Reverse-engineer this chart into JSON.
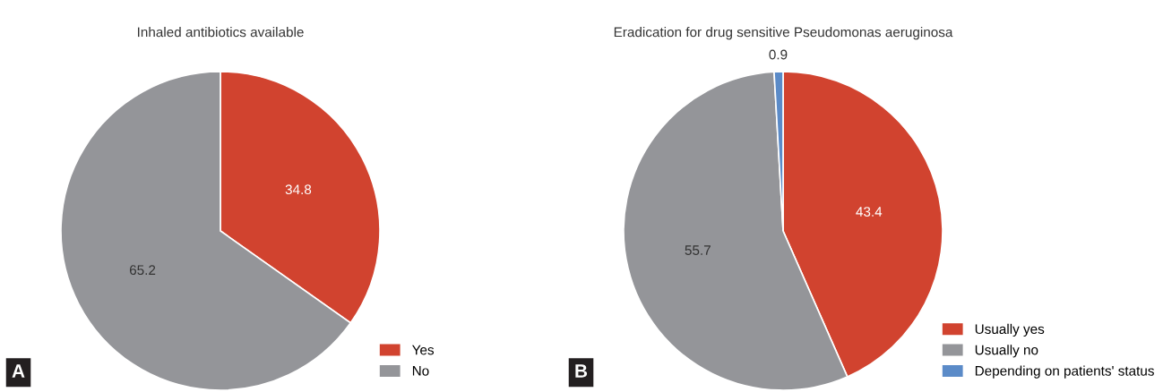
{
  "chart_data": [
    {
      "type": "pie",
      "title": "Inhaled antibiotics available",
      "categories": [
        "Yes",
        "No"
      ],
      "values": [
        34.8,
        65.2
      ],
      "colors": [
        "#d1432f",
        "#949599"
      ],
      "data_labels": true,
      "legend": "bottom right",
      "annotations": [
        "A"
      ]
    },
    {
      "type": "pie",
      "title": "Eradication for drug sensitive Pseudomonas aeruginosa",
      "categories": [
        "Usually yes",
        "Usually no",
        "Depending on patients' status"
      ],
      "values": [
        43.4,
        55.7,
        0.9
      ],
      "colors": [
        "#d1432f",
        "#949599",
        "#5b8bc8"
      ],
      "data_labels": true,
      "legend": "bottom right",
      "annotations": [
        "B"
      ]
    }
  ]
}
